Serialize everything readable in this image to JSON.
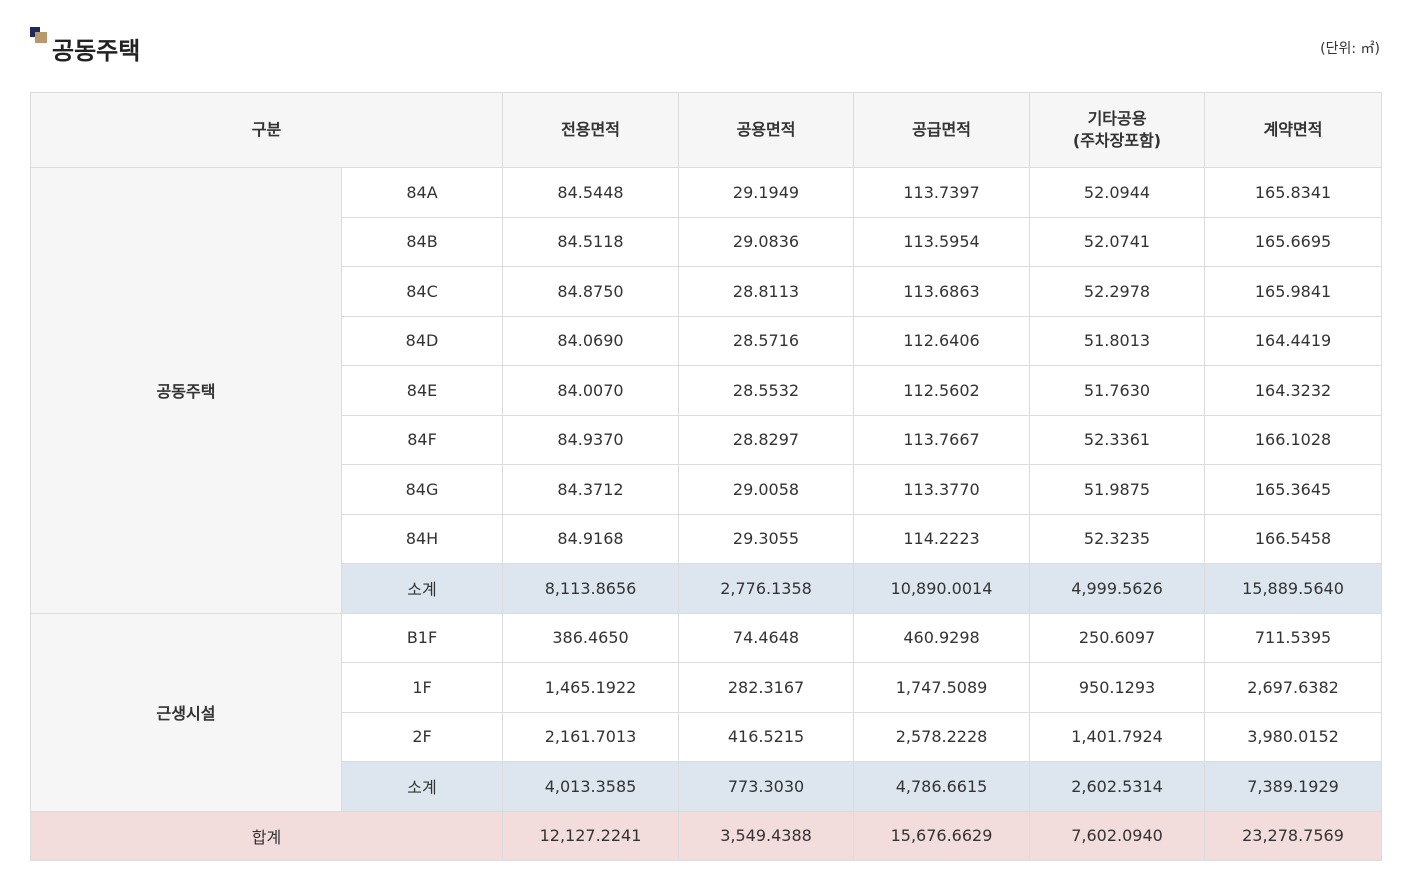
{
  "title": "공동주택",
  "unit": "(단위: ㎡)",
  "table": {
    "header": {
      "category": "구분",
      "columns": [
        "전용면적",
        "공용면적",
        "공급면적",
        "기타공용\n(주차장포함)",
        "계약면적"
      ]
    },
    "groups": [
      {
        "name": "공동주택",
        "rows": [
          {
            "label": "84A",
            "values": [
              "84.5448",
              "29.1949",
              "113.7397",
              "52.0944",
              "165.8341"
            ]
          },
          {
            "label": "84B",
            "values": [
              "84.5118",
              "29.0836",
              "113.5954",
              "52.0741",
              "165.6695"
            ]
          },
          {
            "label": "84C",
            "values": [
              "84.8750",
              "28.8113",
              "113.6863",
              "52.2978",
              "165.9841"
            ]
          },
          {
            "label": "84D",
            "values": [
              "84.0690",
              "28.5716",
              "112.6406",
              "51.8013",
              "164.4419"
            ]
          },
          {
            "label": "84E",
            "values": [
              "84.0070",
              "28.5532",
              "112.5602",
              "51.7630",
              "164.3232"
            ]
          },
          {
            "label": "84F",
            "values": [
              "84.9370",
              "28.8297",
              "113.7667",
              "52.3361",
              "166.1028"
            ]
          },
          {
            "label": "84G",
            "values": [
              "84.3712",
              "29.0058",
              "113.3770",
              "51.9875",
              "165.3645"
            ]
          },
          {
            "label": "84H",
            "values": [
              "84.9168",
              "29.3055",
              "114.2223",
              "52.3235",
              "166.5458"
            ]
          }
        ],
        "subtotal": {
          "label": "소계",
          "values": [
            "8,113.8656",
            "2,776.1358",
            "10,890.0014",
            "4,999.5626",
            "15,889.5640"
          ]
        }
      },
      {
        "name": "근생시설",
        "rows": [
          {
            "label": "B1F",
            "values": [
              "386.4650",
              "74.4648",
              "460.9298",
              "250.6097",
              "711.5395"
            ]
          },
          {
            "label": "1F",
            "values": [
              "1,465.1922",
              "282.3167",
              "1,747.5089",
              "950.1293",
              "2,697.6382"
            ]
          },
          {
            "label": "2F",
            "values": [
              "2,161.7013",
              "416.5215",
              "2,578.2228",
              "1,401.7924",
              "3,980.0152"
            ]
          }
        ],
        "subtotal": {
          "label": "소계",
          "values": [
            "4,013.3585",
            "773.3030",
            "4,786.6615",
            "2,602.5314",
            "7,389.1929"
          ]
        }
      }
    ],
    "total": {
      "label": "합계",
      "values": [
        "12,127.2241",
        "3,549.4388",
        "15,676.6629",
        "7,602.0940",
        "23,278.7569"
      ]
    }
  }
}
